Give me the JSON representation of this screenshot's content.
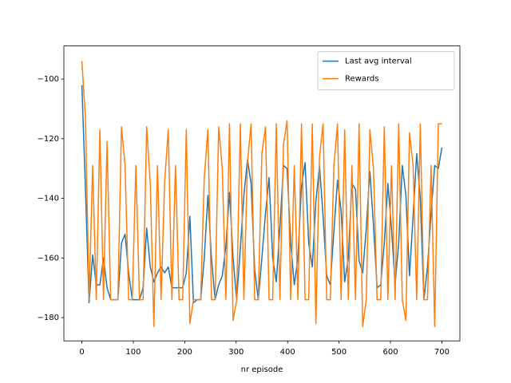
{
  "chart_data": {
    "type": "line",
    "xlabel": "nr episode",
    "x": [
      0,
      7,
      14,
      21,
      28,
      35,
      42,
      49,
      56,
      63,
      70,
      77,
      84,
      91,
      98,
      105,
      112,
      119,
      126,
      133,
      140,
      147,
      154,
      161,
      168,
      175,
      182,
      189,
      196,
      203,
      210,
      217,
      224,
      231,
      238,
      245,
      252,
      259,
      266,
      273,
      280,
      287,
      294,
      301,
      308,
      315,
      322,
      329,
      336,
      343,
      350,
      357,
      364,
      371,
      378,
      385,
      392,
      399,
      406,
      413,
      420,
      427,
      434,
      441,
      448,
      455,
      462,
      469,
      476,
      483,
      490,
      497,
      504,
      511,
      518,
      525,
      532,
      539,
      546,
      553,
      560,
      567,
      574,
      581,
      588,
      595,
      602,
      609,
      616,
      623,
      630,
      637,
      644,
      651,
      658,
      665,
      672,
      679,
      686,
      693,
      700
    ],
    "series": [
      {
        "name": "Last avg interval",
        "color": "#1f77b4",
        "values": [
          -102,
          -137,
          -175,
          -159,
          -169,
          -169,
          -160,
          -170,
          -174,
          -174,
          -174,
          -155,
          -152,
          -165,
          -174,
          -174,
          -174,
          -170,
          -150,
          -163,
          -168,
          -165,
          -163,
          -165,
          -163,
          -170,
          -170,
          -170,
          -170,
          -165,
          -146,
          -175,
          -174,
          -174,
          -160,
          -139,
          -160,
          -174,
          -169,
          -166,
          -156,
          -138,
          -160,
          -174,
          -157,
          -139,
          -127,
          -135,
          -164,
          -174,
          -160,
          -145,
          -133,
          -160,
          -168,
          -150,
          -129,
          -130,
          -155,
          -169,
          -160,
          -136,
          -128,
          -155,
          -163,
          -141,
          -129,
          -146,
          -166,
          -169,
          -151,
          -134,
          -144,
          -168,
          -160,
          -135,
          -137,
          -161,
          -165,
          -150,
          -131,
          -149,
          -170,
          -169,
          -155,
          -135,
          -150,
          -169,
          -155,
          -129,
          -139,
          -166,
          -146,
          -125,
          -140,
          -174,
          -163,
          -145,
          -129,
          -130,
          -123
        ]
      },
      {
        "name": "Rewards",
        "color": "#ff7f0e",
        "values": [
          -94,
          -113,
          -174,
          -129,
          -174,
          -117,
          -174,
          -121,
          -174,
          -174,
          -174,
          -116,
          -129,
          -174,
          -174,
          -129,
          -174,
          -174,
          -116,
          -135,
          -183,
          -129,
          -174,
          -134,
          -117,
          -174,
          -129,
          -174,
          -174,
          -117,
          -182,
          -174,
          -174,
          -174,
          -133,
          -117,
          -174,
          -174,
          -116,
          -130,
          -174,
          -115,
          -181,
          -174,
          -115,
          -174,
          -128,
          -115,
          -174,
          -174,
          -125,
          -116,
          -174,
          -174,
          -115,
          -174,
          -122,
          -114,
          -174,
          -129,
          -174,
          -115,
          -174,
          -174,
          -115,
          -182,
          -126,
          -115,
          -174,
          -174,
          -129,
          -115,
          -174,
          -117,
          -174,
          -129,
          -174,
          -115,
          -183,
          -174,
          -117,
          -130,
          -174,
          -174,
          -116,
          -174,
          -129,
          -174,
          -115,
          -174,
          -181,
          -118,
          -129,
          -174,
          -115,
          -174,
          -174,
          -129,
          -183,
          -115,
          -115
        ]
      }
    ],
    "xlim": [
      -35,
      735
    ],
    "ylim": [
      -187.8,
      -88.9
    ],
    "xticks": [
      0,
      100,
      200,
      300,
      400,
      500,
      600,
      700
    ],
    "yticks": [
      {
        "value": -180,
        "label": "−180"
      },
      {
        "value": -160,
        "label": "−160"
      },
      {
        "value": -140,
        "label": "−140"
      },
      {
        "value": -120,
        "label": "−120"
      },
      {
        "value": -100,
        "label": "−100"
      }
    ],
    "legend": "upper right"
  }
}
